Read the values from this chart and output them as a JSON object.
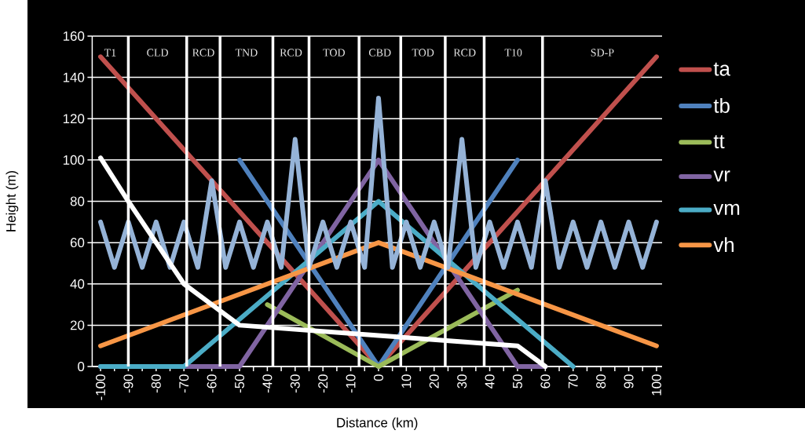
{
  "chart_data": {
    "type": "line",
    "xlabel": "Distance (km)",
    "ylabel": "Height (m)",
    "xlim": [
      -103,
      102
    ],
    "ylim": [
      0,
      160
    ],
    "xticks": [
      -100,
      {
        "value": -95,
        "label": null
      },
      -90,
      {
        "value": -85,
        "label": null
      },
      -80,
      {
        "value": -75,
        "label": null
      },
      -70,
      {
        "value": -65,
        "label": null
      },
      -60,
      {
        "value": -55,
        "label": null
      },
      -50,
      {
        "value": -45,
        "label": null
      },
      -40,
      {
        "value": -35,
        "label": null
      },
      -30,
      {
        "value": -25,
        "label": null
      },
      -20,
      {
        "value": -15,
        "label": null
      },
      -10,
      {
        "value": -5,
        "label": null
      },
      0,
      {
        "value": 5,
        "label": null
      },
      10,
      {
        "value": 15,
        "label": null
      },
      20,
      {
        "value": 25,
        "label": null
      },
      30,
      {
        "value": 35,
        "label": null
      },
      40,
      {
        "value": 45,
        "label": null
      },
      50,
      {
        "value": 55,
        "label": null
      },
      60,
      {
        "value": 65,
        "label": null
      },
      70,
      {
        "value": 75,
        "label": null
      },
      80,
      {
        "value": 85,
        "label": null
      },
      90,
      {
        "value": 95,
        "label": null
      },
      100
    ],
    "yticks": [
      0,
      20,
      40,
      60,
      80,
      100,
      120,
      140,
      160
    ],
    "grid": "y",
    "legend": "right",
    "marker": "none",
    "series": [
      {
        "name": "ta",
        "color": "#c0504d",
        "x": [
          -100,
          0,
          100
        ],
        "values": [
          150,
          0,
          150
        ]
      },
      {
        "name": "tb",
        "color": "#4f81bd",
        "x": [
          -50,
          0,
          50
        ],
        "values": [
          100,
          0,
          100
        ]
      },
      {
        "name": "tt",
        "color": "#9bbb59",
        "x": [
          -40,
          0,
          50
        ],
        "values": [
          30,
          0,
          37
        ]
      },
      {
        "name": "vr",
        "color": "#8064a2",
        "x": [
          -100,
          -50,
          0,
          50,
          60
        ],
        "values": [
          0,
          0,
          100,
          0,
          0
        ]
      },
      {
        "name": "vm",
        "color": "#4bacc6",
        "x": [
          -100,
          -70,
          0,
          70
        ],
        "values": [
          0,
          0,
          80,
          0
        ]
      },
      {
        "name": "vh",
        "color": "#f79646",
        "x": [
          -100,
          0,
          100
        ],
        "values": [
          10,
          60,
          10
        ]
      },
      {
        "color": "#95b3d7",
        "type": "line",
        "x": [
          -100,
          -95,
          -90,
          -85,
          -80,
          -75,
          -70,
          -65,
          -60,
          -55,
          -50,
          -45,
          -40,
          -35,
          -30,
          -25,
          -20,
          -15,
          -10,
          -5,
          0,
          5,
          10,
          15,
          20,
          25,
          30,
          35,
          40,
          45,
          50,
          55,
          60,
          65,
          70,
          75,
          80,
          85,
          90,
          95,
          100
        ],
        "values": [
          70,
          48,
          70,
          48,
          70,
          48,
          70,
          48,
          90,
          48,
          70,
          48,
          70,
          48,
          110,
          48,
          70,
          48,
          70,
          48,
          130,
          48,
          70,
          48,
          70,
          48,
          110,
          48,
          70,
          48,
          70,
          48,
          90,
          48,
          70,
          48,
          70,
          48,
          70,
          48,
          70
        ]
      },
      {
        "color": "#ffffff",
        "x": [
          -100,
          -90,
          -80,
          -70,
          -60,
          -50,
          0,
          50,
          60
        ],
        "values": [
          101,
          80,
          60,
          40,
          30,
          20,
          15,
          10,
          0
        ]
      }
    ],
    "ref_lines": [
      {
        "axis": "x",
        "value": -90,
        "color": "#ffffff"
      },
      {
        "axis": "x",
        "value": -69,
        "color": "#ffffff"
      },
      {
        "axis": "x",
        "value": -57,
        "color": "#ffffff"
      },
      {
        "axis": "x",
        "value": -38,
        "color": "#ffffff"
      },
      {
        "axis": "x",
        "value": -25,
        "color": "#ffffff"
      },
      {
        "axis": "x",
        "value": -7,
        "color": "#ffffff"
      },
      {
        "axis": "x",
        "value": 8,
        "color": "#ffffff"
      },
      {
        "axis": "x",
        "value": 24,
        "color": "#ffffff"
      },
      {
        "axis": "x",
        "value": 38,
        "color": "#ffffff"
      },
      {
        "axis": "x",
        "value": 59,
        "color": "#ffffff"
      }
    ],
    "annotations": [
      "T1",
      "CLD",
      "RCD",
      "TND",
      "RCD",
      "TOD",
      "CBD",
      "TOD",
      "RCD",
      "T10",
      "SD-P"
    ]
  }
}
